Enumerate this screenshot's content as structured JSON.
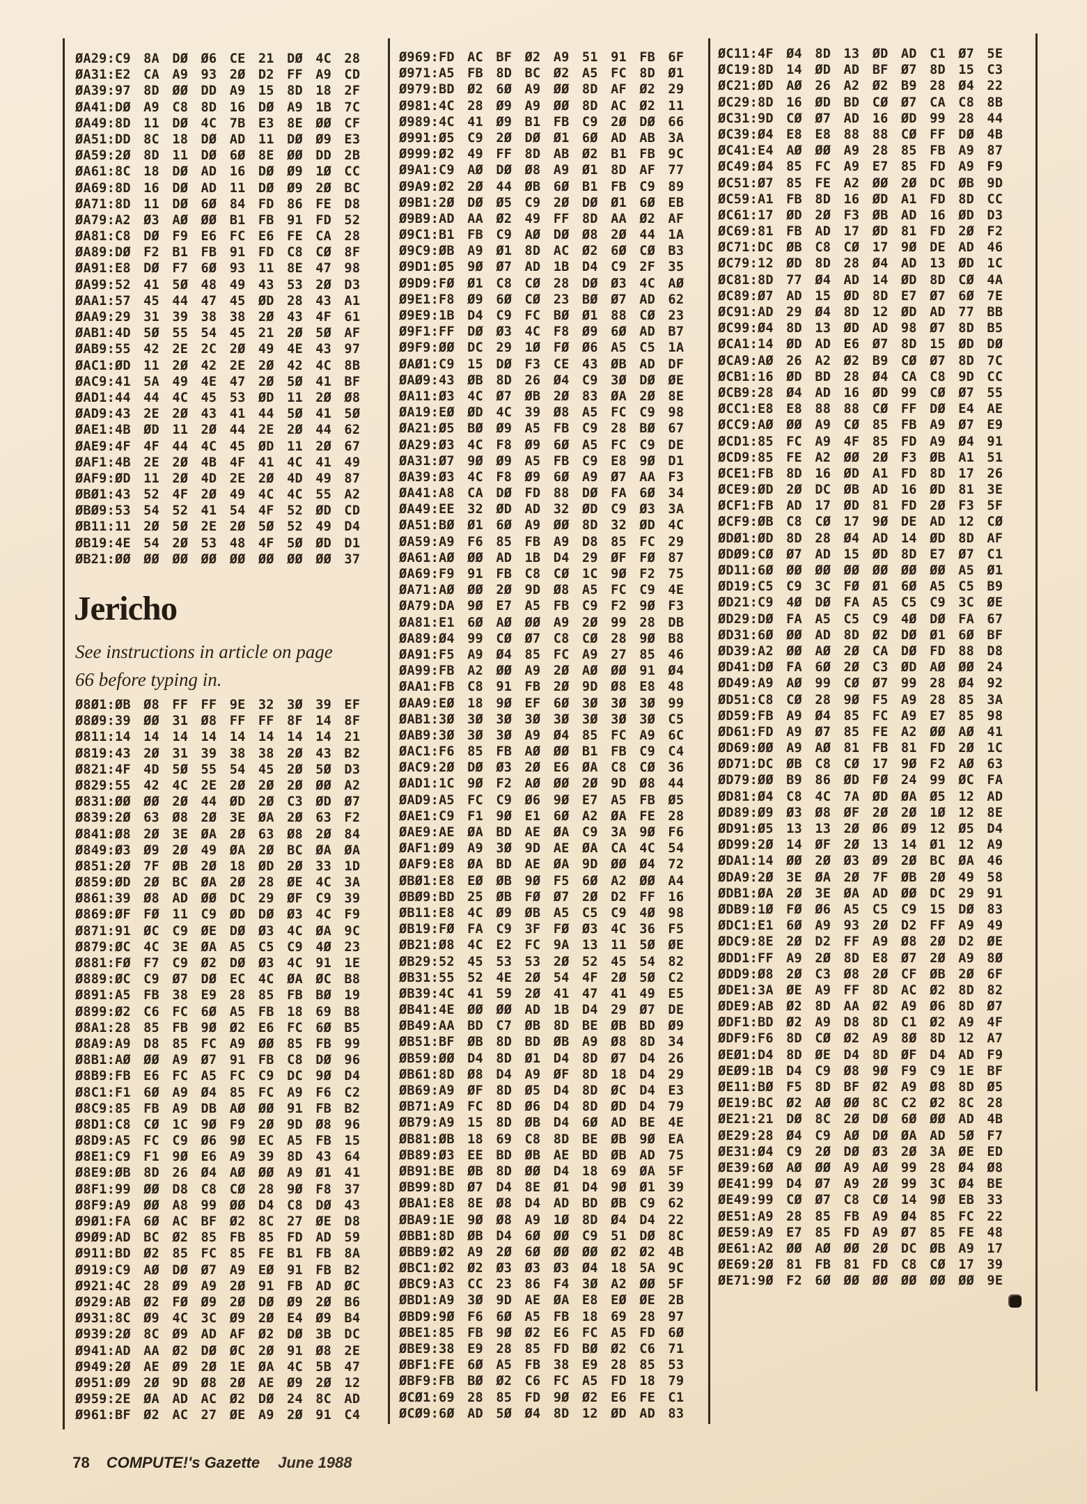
{
  "page": {
    "paper_color": "#f3e5cd",
    "ink_color": "#2b2218"
  },
  "section": {
    "title": "Jericho",
    "instructions": [
      "See instructions in article on page",
      "66 before typing in."
    ]
  },
  "listing": {
    "col1_top_lines": [
      "ØA29:C9 8A DØ Ø6 CE 21 DØ 4C 28",
      "ØA31:E2 CA A9 93 2Ø D2 FF A9 CD",
      "ØA39:97 8D ØØ DD A9 15 8D 18 2F",
      "ØA41:DØ A9 C8 8D 16 DØ A9 1B 7C",
      "ØA49:8D 11 DØ 4C 7B E3 8E ØØ CF",
      "ØA51:DD 8C 18 DØ AD 11 DØ Ø9 E3",
      "ØA59:2Ø 8D 11 DØ 6Ø 8E ØØ DD 2B",
      "ØA61:8C 18 DØ AD 16 DØ Ø9 1Ø CC",
      "ØA69:8D 16 DØ AD 11 DØ Ø9 2Ø BC",
      "ØA71:8D 11 DØ 6Ø 84 FD 86 FE D8",
      "ØA79:A2 Ø3 AØ ØØ B1 FB 91 FD 52",
      "ØA81:C8 DØ F9 E6 FC E6 FE CA 28",
      "ØA89:DØ F2 B1 FB 91 FD C8 CØ 8F",
      "ØA91:E8 DØ F7 6Ø 93 11 8E 47 98",
      "ØA99:52 41 5Ø 48 49 43 53 2Ø D3",
      "ØAA1:57 45 44 47 45 ØD 28 43 A1",
      "ØAA9:29 31 39 38 38 2Ø 43 4F 61",
      "ØAB1:4D 5Ø 55 54 45 21 2Ø 5Ø AF",
      "ØAB9:55 42 2E 2C 2Ø 49 4E 43 97",
      "ØAC1:ØD 11 2Ø 42 2E 2Ø 42 4C 8B",
      "ØAC9:41 5A 49 4E 47 2Ø 5Ø 41 BF",
      "ØAD1:44 44 4C 45 53 ØD 11 2Ø Ø8",
      "ØAD9:43 2E 2Ø 43 41 44 5Ø 41 5Ø",
      "ØAE1:4B ØD 11 2Ø 44 2E 2Ø 44 62",
      "ØAE9:4F 4F 44 4C 45 ØD 11 2Ø 67",
      "ØAF1:4B 2E 2Ø 4B 4F 41 4C 41 49",
      "ØAF9:ØD 11 2Ø 4D 2E 2Ø 4D 49 87",
      "ØBØ1:43 52 4F 2Ø 49 4C 4C 55 A2",
      "ØBØ9:53 54 52 41 54 4F 52 ØD CD",
      "ØB11:11 2Ø 5Ø 2E 2Ø 5Ø 52 49 D4",
      "ØB19:4E 54 2Ø 53 48 4F 5Ø ØD D1",
      "ØB21:ØØ ØØ ØØ ØØ ØØ ØØ ØØ ØØ 37"
    ],
    "col1_bottom_lines": [
      "Ø8Ø1:ØB Ø8 FF FF 9E 32 3Ø 39 EF",
      "Ø8Ø9:39 ØØ 31 Ø8 FF FF 8F 14 8F",
      "Ø811:14 14 14 14 14 14 14 14 21",
      "Ø819:43 2Ø 31 39 38 38 2Ø 43 B2",
      "Ø821:4F 4D 5Ø 55 54 45 2Ø 5Ø D3",
      "Ø829:55 42 4C 2E 2Ø 2Ø 2Ø ØØ A2",
      "Ø831:ØØ ØØ 2Ø 44 ØD 2Ø C3 ØD Ø7",
      "Ø839:2Ø 63 Ø8 2Ø 3E ØA 2Ø 63 F2",
      "Ø841:Ø8 2Ø 3E ØA 2Ø 63 Ø8 2Ø 84",
      "Ø849:Ø3 Ø9 2Ø 49 ØA 2Ø BC ØA ØA",
      "Ø851:2Ø 7F ØB 2Ø 18 ØD 2Ø 33 1D",
      "Ø859:ØD 2Ø BC ØA 2Ø 28 ØE 4C 3A",
      "Ø861:39 Ø8 AD ØØ DC 29 ØF C9 39",
      "Ø869:ØF FØ 11 C9 ØD DØ Ø3 4C F9",
      "Ø871:91 ØC C9 ØE DØ Ø3 4C ØA 9C",
      "Ø879:ØC 4C 3E ØA A5 C5 C9 4Ø 23",
      "Ø881:FØ F7 C9 Ø2 DØ Ø3 4C 91 1E",
      "Ø889:ØC C9 Ø7 DØ EC 4C ØA ØC B8",
      "Ø891:A5 FB 38 E9 28 85 FB BØ 19",
      "Ø899:Ø2 C6 FC 6Ø A5 FB 18 69 B8",
      "Ø8A1:28 85 FB 9Ø Ø2 E6 FC 6Ø B5",
      "Ø8A9:A9 D8 85 FC A9 ØØ 85 FB 99",
      "Ø8B1:AØ ØØ A9 Ø7 91 FB C8 DØ 96",
      "Ø8B9:FB E6 FC A5 FC C9 DC 9Ø D4",
      "Ø8C1:F1 6Ø A9 Ø4 85 FC A9 F6 C2",
      "Ø8C9:85 FB A9 DB AØ ØØ 91 FB B2",
      "Ø8D1:C8 CØ 1C 9Ø F9 2Ø 9D Ø8 96",
      "Ø8D9:A5 FC C9 Ø6 9Ø EC A5 FB 15",
      "Ø8E1:C9 F1 9Ø E6 A9 39 8D 43 64",
      "Ø8E9:ØB 8D 26 Ø4 AØ ØØ A9 Ø1 41",
      "Ø8F1:99 ØØ D8 C8 CØ 28 9Ø F8 37",
      "Ø8F9:A9 ØØ A8 99 ØØ D4 C8 DØ 43",
      "Ø9Ø1:FA 6Ø AC BF Ø2 8C 27 ØE D8",
      "Ø9Ø9:AD BC Ø2 85 FB 85 FD AD 59",
      "Ø911:BD Ø2 85 FC 85 FE B1 FB 8A",
      "Ø919:C9 AØ DØ Ø7 A9 EØ 91 FB B2",
      "Ø921:4C 28 Ø9 A9 2Ø 91 FB AD ØC",
      "Ø929:AB Ø2 FØ Ø9 2Ø DØ Ø9 2Ø B6",
      "Ø931:8C Ø9 4C 3C Ø9 2Ø E4 Ø9 B4",
      "Ø939:2Ø 8C Ø9 AD AF Ø2 DØ 3B DC",
      "Ø941:AD AA Ø2 DØ ØC 2Ø 91 Ø8 2E",
      "Ø949:2Ø AE Ø9 2Ø 1E ØA 4C 5B 47",
      "Ø951:Ø9 2Ø 9D Ø8 2Ø AE Ø9 2Ø 12",
      "Ø959:2E ØA AD AC Ø2 DØ 24 8C AD",
      "Ø961:BF Ø2 AC 27 ØE A9 2Ø 91 C4"
    ],
    "col2_lines": [
      "Ø969:FD AC BF Ø2 A9 51 91 FB 6F",
      "Ø971:A5 FB 8D BC Ø2 A5 FC 8D Ø1",
      "Ø979:BD Ø2 6Ø A9 ØØ 8D AF Ø2 29",
      "Ø981:4C 28 Ø9 A9 ØØ 8D AC Ø2 11",
      "Ø989:4C 41 Ø9 B1 FB C9 2Ø DØ 66",
      "Ø991:Ø5 C9 2Ø DØ Ø1 6Ø AD AB 3A",
      "Ø999:Ø2 49 FF 8D AB Ø2 B1 FB 9C",
      "Ø9A1:C9 AØ DØ Ø8 A9 Ø1 8D AF 77",
      "Ø9A9:Ø2 2Ø 44 ØB 6Ø B1 FB C9 89",
      "Ø9B1:2Ø DØ Ø5 C9 2Ø DØ Ø1 6Ø EB",
      "Ø9B9:AD AA Ø2 49 FF 8D AA Ø2 AF",
      "Ø9C1:B1 FB C9 AØ DØ Ø8 2Ø 44 1A",
      "Ø9C9:ØB A9 Ø1 8D AC Ø2 6Ø CØ B3",
      "Ø9D1:Ø5 9Ø Ø7 AD 1B D4 C9 2F 35",
      "Ø9D9:FØ Ø1 C8 CØ 28 DØ Ø3 4C AØ",
      "Ø9E1:F8 Ø9 6Ø CØ 23 BØ Ø7 AD 62",
      "Ø9E9:1B D4 C9 FC BØ Ø1 88 CØ 23",
      "Ø9F1:FF DØ Ø3 4C F8 Ø9 6Ø AD B7",
      "Ø9F9:ØØ DC 29 1Ø FØ Ø6 A5 C5 1A",
      "ØAØ1:C9 15 DØ F3 CE 43 ØB AD DF",
      "ØAØ9:43 ØB 8D 26 Ø4 C9 3Ø DØ ØE",
      "ØA11:Ø3 4C Ø7 ØB 2Ø 83 ØA 2Ø 8E",
      "ØA19:EØ ØD 4C 39 Ø8 A5 FC C9 98",
      "ØA21:Ø5 BØ Ø9 A5 FB C9 28 BØ 67",
      "ØA29:Ø3 4C F8 Ø9 6Ø A5 FC C9 DE",
      "ØA31:Ø7 9Ø Ø9 A5 FB C9 E8 9Ø D1",
      "ØA39:Ø3 4C F8 Ø9 6Ø A9 Ø7 AA F3",
      "ØA41:A8 CA DØ FD 88 DØ FA 6Ø 34",
      "ØA49:EE 32 ØD AD 32 ØD C9 Ø3 3A",
      "ØA51:BØ Ø1 6Ø A9 ØØ 8D 32 ØD 4C",
      "ØA59:A9 F6 85 FB A9 D8 85 FC 29",
      "ØA61:AØ ØØ AD 1B D4 29 ØF FØ 87",
      "ØA69:F9 91 FB C8 CØ 1C 9Ø F2 75",
      "ØA71:AØ ØØ 2Ø 9D Ø8 A5 FC C9 4E",
      "ØA79:DA 9Ø E7 A5 FB C9 F2 9Ø F3",
      "ØA81:E1 6Ø AØ ØØ A9 2Ø 99 28 DB",
      "ØA89:Ø4 99 CØ Ø7 C8 CØ 28 9Ø B8",
      "ØA91:F5 A9 Ø4 85 FC A9 27 85 46",
      "ØA99:FB A2 ØØ A9 2Ø AØ ØØ 91 Ø4",
      "ØAA1:FB C8 91 FB 2Ø 9D Ø8 E8 48",
      "ØAA9:EØ 18 9Ø EF 6Ø 3Ø 3Ø 3Ø 99",
      "ØAB1:3Ø 3Ø 3Ø 3Ø 3Ø 3Ø 3Ø 3Ø C5",
      "ØAB9:3Ø 3Ø 3Ø A9 Ø4 85 FC A9 6C",
      "ØAC1:F6 85 FB AØ ØØ B1 FB C9 C4",
      "ØAC9:2Ø DØ Ø3 2Ø E6 ØA C8 CØ 36",
      "ØAD1:1C 9Ø F2 AØ ØØ 2Ø 9D Ø8 44",
      "ØAD9:A5 FC C9 Ø6 9Ø E7 A5 FB Ø5",
      "ØAE1:C9 F1 9Ø E1 6Ø A2 ØA FE 28",
      "ØAE9:AE ØA BD AE ØA C9 3A 9Ø F6",
      "ØAF1:Ø9 A9 3Ø 9D AE ØA CA 4C 54",
      "ØAF9:E8 ØA BD AE ØA 9D ØØ Ø4 72",
      "ØBØ1:E8 EØ ØB 9Ø F5 6Ø A2 ØØ A4",
      "ØBØ9:BD 25 ØB FØ Ø7 2Ø D2 FF 16",
      "ØB11:E8 4C Ø9 ØB A5 C5 C9 4Ø 98",
      "ØB19:FØ FA C9 3F FØ Ø3 4C 36 F5",
      "ØB21:Ø8 4C E2 FC 9A 13 11 5Ø ØE",
      "ØB29:52 45 53 53 2Ø 52 45 54 82",
      "ØB31:55 52 4E 2Ø 54 4F 2Ø 5Ø C2",
      "ØB39:4C 41 59 2Ø 41 47 41 49 E5",
      "ØB41:4E ØØ ØØ AD 1B D4 29 Ø7 DE",
      "ØB49:AA BD C7 ØB 8D BE ØB BD Ø9",
      "ØB51:BF ØB 8D BD ØB A9 Ø8 8D 34",
      "ØB59:ØØ D4 8D Ø1 D4 8D Ø7 D4 26",
      "ØB61:8D Ø8 D4 A9 ØF 8D 18 D4 29",
      "ØB69:A9 ØF 8D Ø5 D4 8D ØC D4 E3",
      "ØB71:A9 FC 8D Ø6 D4 8D ØD D4 79",
      "ØB79:A9 15 8D ØB D4 6Ø AD BE 4E",
      "ØB81:ØB 18 69 C8 8D BE ØB 9Ø EA",
      "ØB89:Ø3 EE BD ØB AE BD ØB AD 75",
      "ØB91:BE ØB 8D ØØ D4 18 69 ØA 5F",
      "ØB99:8D Ø7 D4 8E Ø1 D4 9Ø Ø1 39",
      "ØBA1:E8 8E Ø8 D4 AD BD ØB C9 62",
      "ØBA9:1E 9Ø Ø8 A9 1Ø 8D Ø4 D4 22",
      "ØBB1:8D ØB D4 6Ø ØØ C9 51 DØ 8C",
      "ØBB9:Ø2 A9 2Ø 6Ø ØØ ØØ Ø2 Ø2 4B",
      "ØBC1:Ø2 Ø2 Ø3 Ø3 Ø3 Ø4 18 5A 9C",
      "ØBC9:A3 CC 23 86 F4 3Ø A2 ØØ 5F",
      "ØBD1:A9 3Ø 9D AE ØA E8 EØ ØE 2B",
      "ØBD9:9Ø F6 6Ø A5 FB 18 69 28 97",
      "ØBE1:85 FB 9Ø Ø2 E6 FC A5 FD 6Ø",
      "ØBE9:38 E9 28 85 FD BØ Ø2 C6 71",
      "ØBF1:FE 6Ø A5 FB 38 E9 28 85 53",
      "ØBF9:FB BØ Ø2 C6 FC A5 FD 18 79",
      "ØCØ1:69 28 85 FD 9Ø Ø2 E6 FE C1",
      "ØCØ9:6Ø AD 5Ø Ø4 8D 12 ØD AD 83"
    ],
    "col3_lines": [
      "ØC11:4F Ø4 8D 13 ØD AD C1 Ø7 5E",
      "ØC19:8D 14 ØD AD BF Ø7 8D 15 C3",
      "ØC21:ØD AØ 26 A2 Ø2 B9 28 Ø4 22",
      "ØC29:8D 16 ØD BD CØ Ø7 CA C8 8B",
      "ØC31:9D CØ Ø7 AD 16 ØD 99 28 44",
      "ØC39:Ø4 E8 E8 88 88 CØ FF DØ 4B",
      "ØC41:E4 AØ ØØ A9 28 85 FB A9 87",
      "ØC49:Ø4 85 FC A9 E7 85 FD A9 F9",
      "ØC51:Ø7 85 FE A2 ØØ 2Ø DC ØB 9D",
      "ØC59:A1 FB 8D 16 ØD A1 FD 8D CC",
      "ØC61:17 ØD 2Ø F3 ØB AD 16 ØD D3",
      "ØC69:81 FB AD 17 ØD 81 FD 2Ø F2",
      "ØC71:DC ØB C8 CØ 17 9Ø DE AD 46",
      "ØC79:12 ØD 8D 28 Ø4 AD 13 ØD 1C",
      "ØC81:8D 77 Ø4 AD 14 ØD 8D CØ 4A",
      "ØC89:Ø7 AD 15 ØD 8D E7 Ø7 6Ø 7E",
      "ØC91:AD 29 Ø4 8D 12 ØD AD 77 BB",
      "ØC99:Ø4 8D 13 ØD AD 98 Ø7 8D B5",
      "ØCA1:14 ØD AD E6 Ø7 8D 15 ØD DØ",
      "ØCA9:AØ 26 A2 Ø2 B9 CØ Ø7 8D 7C",
      "ØCB1:16 ØD BD 28 Ø4 CA C8 9D CC",
      "ØCB9:28 Ø4 AD 16 ØD 99 CØ Ø7 55",
      "ØCC1:E8 E8 88 88 CØ FF DØ E4 AE",
      "ØCC9:AØ ØØ A9 CØ 85 FB A9 Ø7 E9",
      "ØCD1:85 FC A9 4F 85 FD A9 Ø4 91",
      "ØCD9:85 FE A2 ØØ 2Ø F3 ØB A1 51",
      "ØCE1:FB 8D 16 ØD A1 FD 8D 17 26",
      "ØCE9:ØD 2Ø DC ØB AD 16 ØD 81 3E",
      "ØCF1:FB AD 17 ØD 81 FD 2Ø F3 5F",
      "ØCF9:ØB C8 CØ 17 9Ø DE AD 12 CØ",
      "ØDØ1:ØD 8D 28 Ø4 AD 14 ØD 8D AF",
      "ØDØ9:CØ Ø7 AD 15 ØD 8D E7 Ø7 C1",
      "ØD11:6Ø ØØ ØØ ØØ ØØ ØØ ØØ A5 Ø1",
      "ØD19:C5 C9 3C FØ Ø1 6Ø A5 C5 B9",
      "ØD21:C9 4Ø DØ FA A5 C5 C9 3C ØE",
      "ØD29:DØ FA A5 C5 C9 4Ø DØ FA 67",
      "ØD31:6Ø ØØ AD 8D Ø2 DØ Ø1 6Ø BF",
      "ØD39:A2 ØØ AØ 2Ø CA DØ FD 88 D8",
      "ØD41:DØ FA 6Ø 2Ø C3 ØD AØ ØØ 24",
      "ØD49:A9 AØ 99 CØ Ø7 99 28 Ø4 92",
      "ØD51:C8 CØ 28 9Ø F5 A9 28 85 3A",
      "ØD59:FB A9 Ø4 85 FC A9 E7 85 98",
      "ØD61:FD A9 Ø7 85 FE A2 ØØ AØ 41",
      "ØD69:ØØ A9 AØ 81 FB 81 FD 2Ø 1C",
      "ØD71:DC ØB C8 CØ 17 9Ø F2 AØ 63",
      "ØD79:ØØ B9 86 ØD FØ 24 99 ØC FA",
      "ØD81:Ø4 C8 4C 7A ØD ØA Ø5 12 AD",
      "ØD89:Ø9 Ø3 Ø8 ØF 2Ø 2Ø 1Ø 12 8E",
      "ØD91:Ø5 13 13 2Ø Ø6 Ø9 12 Ø5 D4",
      "ØD99:2Ø 14 ØF 2Ø 13 14 Ø1 12 A9",
      "ØDA1:14 ØØ 2Ø Ø3 Ø9 2Ø BC ØA 46",
      "ØDA9:2Ø 3E ØA 2Ø 7F ØB 2Ø 49 58",
      "ØDB1:ØA 2Ø 3E ØA AD ØØ DC 29 91",
      "ØDB9:1Ø FØ Ø6 A5 C5 C9 15 DØ 83",
      "ØDC1:E1 6Ø A9 93 2Ø D2 FF A9 49",
      "ØDC9:8E 2Ø D2 FF A9 Ø8 2Ø D2 ØE",
      "ØDD1:FF A9 2Ø 8D E8 Ø7 2Ø A9 8Ø",
      "ØDD9:Ø8 2Ø C3 Ø8 2Ø CF ØB 2Ø 6F",
      "ØDE1:3A ØE A9 FF 8D AC Ø2 8D 82",
      "ØDE9:AB Ø2 8D AA Ø2 A9 Ø6 8D Ø7",
      "ØDF1:BD Ø2 A9 D8 8D C1 Ø2 A9 4F",
      "ØDF9:F6 8D CØ Ø2 A9 8Ø 8D 12 A7",
      "ØEØ1:D4 8D ØE D4 8D ØF D4 AD F9",
      "ØEØ9:1B D4 C9 Ø8 9Ø F9 C9 1E BF",
      "ØE11:BØ F5 8D BF Ø2 A9 Ø8 8D Ø5",
      "ØE19:BC Ø2 AØ ØØ 8C C2 Ø2 8C 28",
      "ØE21:21 DØ 8C 2Ø DØ 6Ø ØØ AD 4B",
      "ØE29:28 Ø4 C9 AØ DØ ØA AD 5Ø F7",
      "ØE31:Ø4 C9 2Ø DØ Ø3 2Ø 3A ØE ED",
      "ØE39:6Ø AØ ØØ A9 AØ 99 28 Ø4 Ø8",
      "ØE41:99 D4 Ø7 A9 2Ø 99 3C Ø4 BE",
      "ØE49:99 CØ Ø7 C8 CØ 14 9Ø EB 33",
      "ØE51:A9 28 85 FB A9 Ø4 85 FC 22",
      "ØE59:A9 E7 85 FD A9 Ø7 85 FE 48",
      "ØE61:A2 ØØ AØ ØØ 2Ø DC ØB A9 17",
      "ØE69:2Ø 81 FB 81 FD C8 CØ 17 39",
      "ØE71:9Ø F2 6Ø ØØ ØØ ØØ ØØ ØØ 9E"
    ]
  },
  "footer": {
    "page_number": "78",
    "magazine": "COMPUTE!'s Gazette",
    "issue_date": "June 1988"
  }
}
